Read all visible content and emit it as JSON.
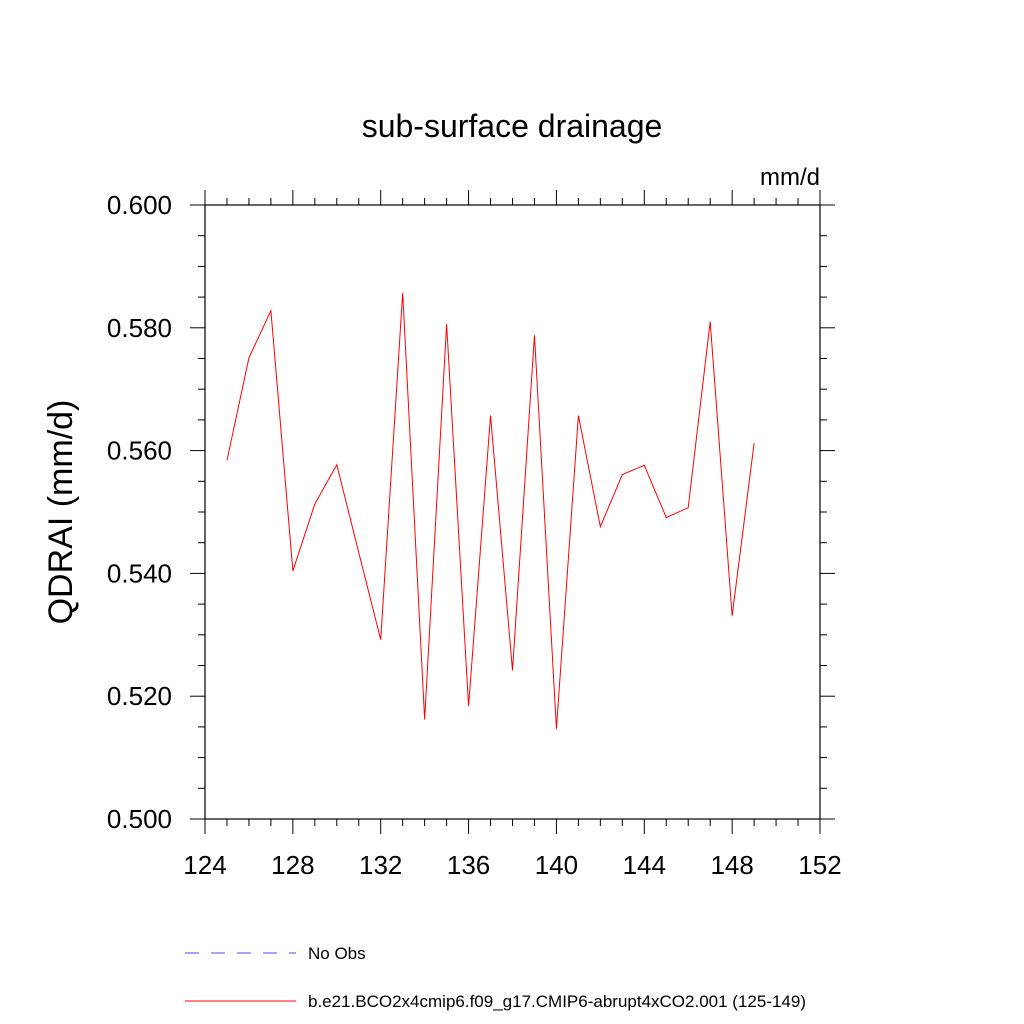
{
  "chart_data": {
    "type": "line",
    "title": "sub-surface drainage",
    "units": "mm/d",
    "xlabel": "",
    "ylabel": "QDRAI  (mm/d)",
    "xlim": [
      124,
      152
    ],
    "ylim": [
      0.5,
      0.6
    ],
    "x_ticks": [
      124,
      128,
      132,
      136,
      140,
      144,
      148,
      152
    ],
    "y_ticks": [
      0.5,
      0.52,
      0.54,
      0.56,
      0.58,
      0.6
    ],
    "x_tick_labels": [
      "124",
      "128",
      "132",
      "136",
      "140",
      "144",
      "148",
      "152"
    ],
    "y_tick_labels": [
      "0.500",
      "0.520",
      "0.540",
      "0.560",
      "0.580",
      "0.600"
    ],
    "grid": false,
    "legend_position": "bottom",
    "legend": [
      {
        "label": "No Obs",
        "color": "#4B4BFF",
        "style": "dashed"
      },
      {
        "label": "b.e21.BCO2x4cmip6.f09_g17.CMIP6-abrupt4xCO2.001 (125-149)",
        "color": "#ff0000",
        "style": "solid"
      }
    ],
    "series": [
      {
        "color": "#ff0000",
        "x": [
          125,
          126,
          127,
          128,
          129,
          130,
          131,
          132,
          133,
          134,
          135,
          136,
          137,
          138,
          139,
          140,
          141,
          142,
          143,
          144,
          145,
          146,
          147,
          148,
          149
        ],
        "values": [
          0.5584,
          0.5751,
          0.5828,
          0.5404,
          0.5513,
          0.5577,
          0.5434,
          0.5292,
          0.5857,
          0.5162,
          0.5806,
          0.5184,
          0.5657,
          0.5242,
          0.5788,
          0.5147,
          0.5657,
          0.5476,
          0.5561,
          0.5576,
          0.5491,
          0.5507,
          0.581,
          0.5331,
          0.5612
        ]
      }
    ]
  }
}
